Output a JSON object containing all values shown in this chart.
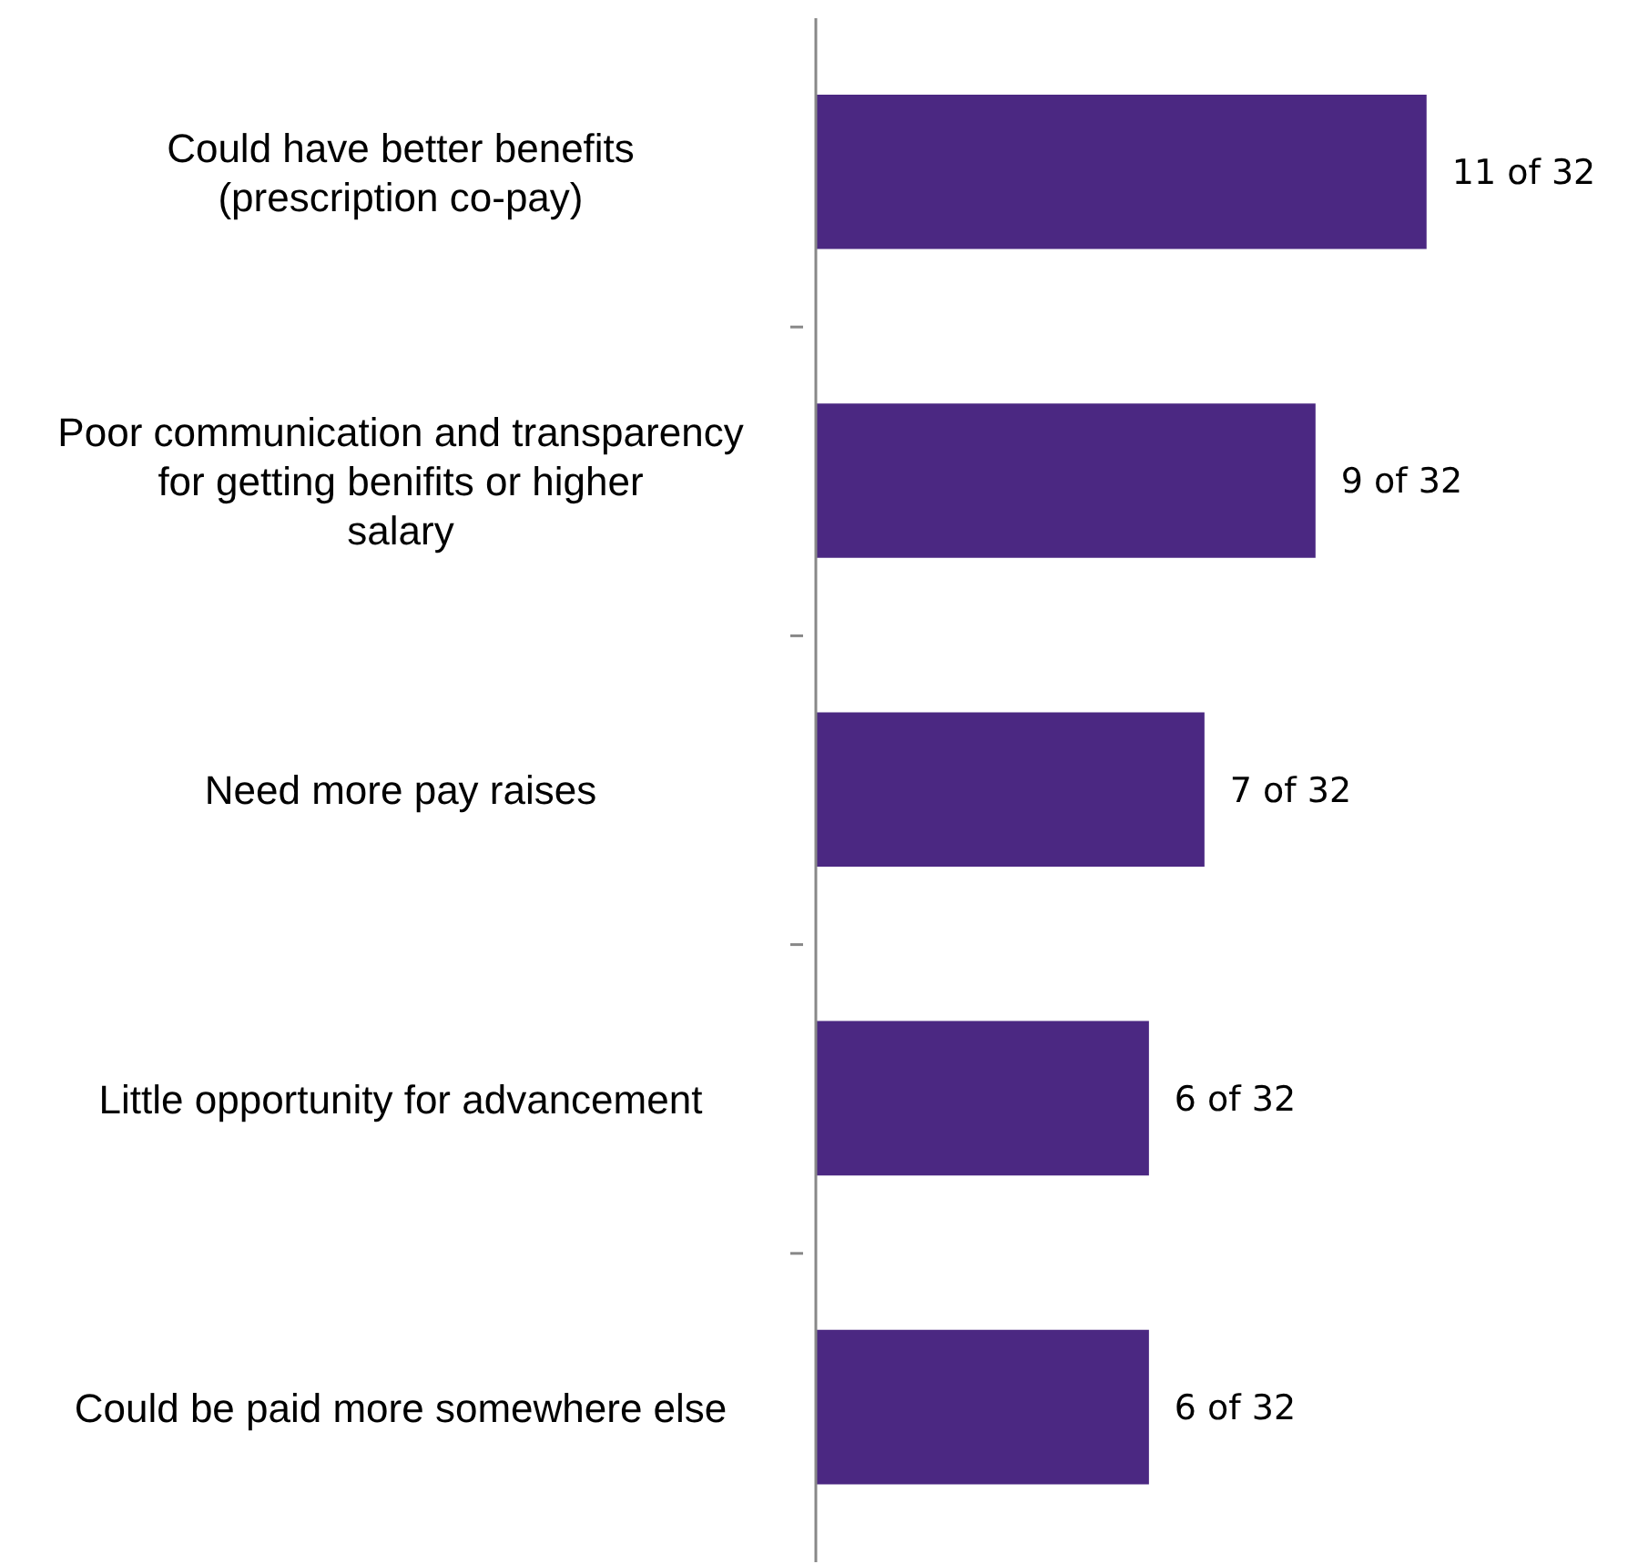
{
  "chart_data": {
    "type": "bar",
    "orientation": "horizontal",
    "categories": [
      "Could have better benefits (prescription co-pay)",
      "Poor communication and transparency for getting benifits or higher salary",
      "Need more pay raises",
      "Little opportunity for advancement",
      "Could be paid more somewhere else"
    ],
    "values": [
      11,
      9,
      7,
      6,
      6
    ],
    "value_labels": [
      "11 of 32",
      "9 of 32",
      "7 of 32",
      "6 of 32",
      "6 of 32"
    ],
    "color": "#4b2882"
  }
}
